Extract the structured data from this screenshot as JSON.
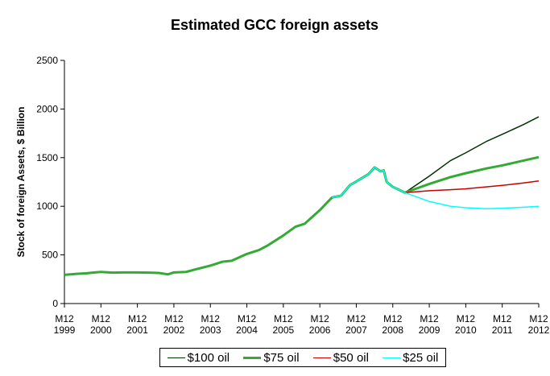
{
  "chart_data": {
    "type": "line",
    "title": "Estimated GCC foreign assets",
    "y_label": "Stock of foreign Assets, $ Billion",
    "ylim": [
      0,
      2500
    ],
    "yticks": [
      0,
      500,
      1000,
      1500,
      2000,
      2500
    ],
    "xlim": [
      1999.917,
      2012.917
    ],
    "xticks": [
      {
        "value": 1999.917,
        "label": "M12\n1999"
      },
      {
        "value": 2000.917,
        "label": "M12\n2000"
      },
      {
        "value": 2001.917,
        "label": "M12\n2001"
      },
      {
        "value": 2002.917,
        "label": "M12\n2002"
      },
      {
        "value": 2003.917,
        "label": "M12\n2003"
      },
      {
        "value": 2004.917,
        "label": "M12\n2004"
      },
      {
        "value": 2005.917,
        "label": "M12\n2005"
      },
      {
        "value": 2006.917,
        "label": "M12\n2006"
      },
      {
        "value": 2007.917,
        "label": "M12\n2007"
      },
      {
        "value": 2008.917,
        "label": "M12\n2008"
      },
      {
        "value": 2009.917,
        "label": "M12\n2009"
      },
      {
        "value": 2010.917,
        "label": "M12\n2010"
      },
      {
        "value": 2011.917,
        "label": "M12\n2011"
      },
      {
        "value": 2012.917,
        "label": "M12\n2012"
      }
    ],
    "x": [
      1999.917,
      2000.25,
      2000.5,
      2000.75,
      2000.917,
      2001.25,
      2001.5,
      2001.917,
      2002.25,
      2002.5,
      2002.75,
      2002.917,
      2003.25,
      2003.5,
      2003.917,
      2004.25,
      2004.5,
      2004.917,
      2005.25,
      2005.5,
      2005.917,
      2006.25,
      2006.5,
      2006.917,
      2007.25,
      2007.5,
      2007.75,
      2007.917,
      2008.25,
      2008.417,
      2008.583,
      2008.667,
      2008.75,
      2008.917,
      2009.25,
      2009.917,
      2010.5,
      2010.917,
      2011.5,
      2011.917,
      2012.5,
      2012.917
    ],
    "series": [
      {
        "name": "$100 oil",
        "color": "#003300",
        "width": 1.5,
        "values": [
          null,
          null,
          null,
          null,
          null,
          null,
          null,
          null,
          null,
          null,
          null,
          null,
          null,
          null,
          null,
          null,
          null,
          null,
          null,
          null,
          null,
          null,
          null,
          null,
          null,
          null,
          null,
          null,
          null,
          null,
          null,
          null,
          null,
          null,
          1140,
          1310,
          1470,
          1550,
          1670,
          1740,
          1840,
          1920
        ]
      },
      {
        "name": "$75 oil",
        "color": "#33aa33",
        "width": 3,
        "values": [
          295,
          305,
          310,
          320,
          325,
          318,
          320,
          320,
          318,
          315,
          300,
          320,
          325,
          350,
          390,
          430,
          440,
          510,
          550,
          600,
          700,
          790,
          820,
          960,
          1090,
          1110,
          1220,
          1255,
          1330,
          1400,
          1360,
          1370,
          1250,
          1200,
          1140,
          1230,
          1300,
          1340,
          1390,
          1420,
          1470,
          1505
        ]
      },
      {
        "name": "$50 oil",
        "color": "#cc0000",
        "width": 1.5,
        "values": [
          null,
          null,
          null,
          null,
          null,
          null,
          null,
          null,
          null,
          null,
          null,
          null,
          null,
          null,
          null,
          null,
          null,
          null,
          null,
          null,
          null,
          null,
          null,
          null,
          null,
          null,
          null,
          null,
          null,
          null,
          null,
          null,
          null,
          null,
          1140,
          1160,
          1170,
          1180,
          1200,
          1215,
          1240,
          1260
        ]
      },
      {
        "name": "$25 oil",
        "color": "#00ffff",
        "width": 1.5,
        "values": [
          null,
          null,
          null,
          null,
          null,
          null,
          null,
          null,
          null,
          null,
          null,
          null,
          null,
          null,
          null,
          null,
          null,
          null,
          null,
          null,
          null,
          null,
          null,
          null,
          1090,
          1110,
          1220,
          1255,
          1330,
          1400,
          1360,
          1370,
          1250,
          1200,
          1140,
          1050,
          1000,
          985,
          975,
          980,
          990,
          1000
        ]
      }
    ],
    "legend": "bottom",
    "grid": false
  }
}
